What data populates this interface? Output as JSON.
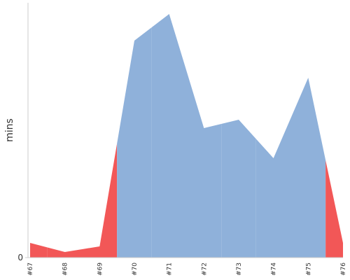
{
  "chart_data": {
    "type": "area",
    "y_label": "mins",
    "categories": [
      "#67",
      "#68",
      "#69",
      "#70",
      "#71",
      "#72",
      "#73",
      "#74",
      "#75",
      "#76"
    ],
    "series": [
      {
        "values": [
          2.1,
          0.8,
          1.6,
          31,
          34.8,
          18.5,
          19.7,
          14.2,
          25.7,
          2.1
        ],
        "colors": [
          "#f25757",
          "#f25757",
          "#f25757",
          "#8fb1da",
          "#8fb1da",
          "#8fb1da",
          "#8fb1da",
          "#8fb1da",
          "#8fb1da",
          "#f25757"
        ]
      }
    ],
    "ylim": [
      0,
      36.3
    ],
    "yticks": [
      0
    ]
  }
}
